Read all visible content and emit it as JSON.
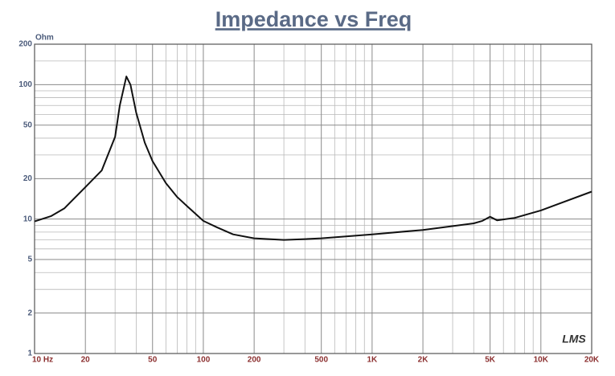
{
  "chart_data": {
    "type": "line",
    "title": "Impedance vs Freq",
    "y_label": "Ohm",
    "annotation": "LMS",
    "xscale": "log",
    "yscale": "log",
    "xlim": [
      10,
      20000
    ],
    "ylim": [
      1,
      200
    ],
    "xticks": [
      {
        "value": 10,
        "label": "10 Hz"
      },
      20,
      50,
      100,
      200,
      500,
      {
        "value": 1000,
        "label": "1K"
      },
      {
        "value": 2000,
        "label": "2K"
      },
      {
        "value": 5000,
        "label": "5K"
      },
      {
        "value": 10000,
        "label": "10K"
      },
      {
        "value": 20000,
        "label": "20K"
      }
    ],
    "yticks": [
      1,
      2,
      5,
      10,
      20,
      50,
      100,
      200
    ],
    "xminor": [
      30,
      40,
      60,
      70,
      80,
      90,
      300,
      400,
      600,
      700,
      800,
      900,
      3000,
      4000,
      6000,
      7000,
      8000,
      9000
    ],
    "yminor": [
      3,
      4,
      6,
      7,
      8,
      9,
      30,
      40,
      60,
      70,
      80,
      90,
      150
    ],
    "grid": true,
    "xtick_color": "#8b2f2f",
    "ytick_color": "#4a5a7a",
    "title_color": "#5a6a86",
    "color": "#111111",
    "x": [
      10,
      12.5,
      15,
      20,
      25,
      30,
      32,
      35,
      37,
      40,
      45,
      50,
      60,
      70,
      80,
      100,
      120,
      150,
      200,
      300,
      400,
      500,
      1000,
      2000,
      4000,
      4500,
      5000,
      5500,
      7000,
      10000,
      20000
    ],
    "values": [
      9.6,
      10.5,
      12,
      17.3,
      23,
      41,
      70,
      115,
      100,
      62,
      37,
      27,
      18.5,
      14.6,
      12.5,
      9.7,
      8.7,
      7.7,
      7.2,
      7.0,
      7.1,
      7.2,
      7.7,
      8.3,
      9.3,
      9.7,
      10.4,
      9.8,
      10.2,
      11.6,
      16
    ]
  }
}
